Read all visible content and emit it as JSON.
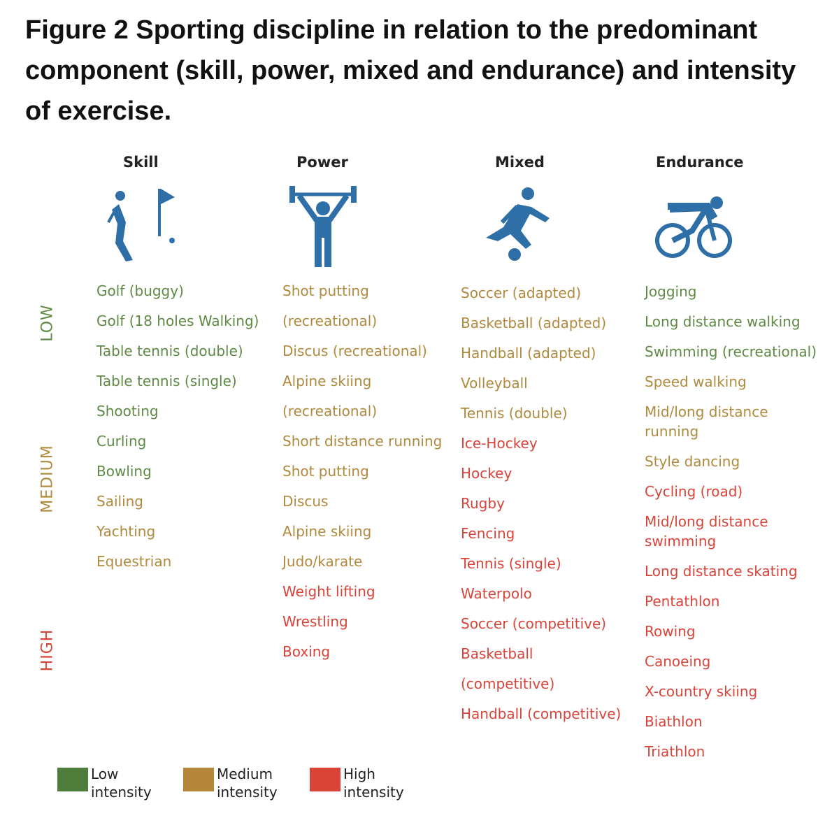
{
  "title": "Figure 2 Sporting discipline in relation to the predominant component (skill, power, mixed and endurance) and intensity of exercise.",
  "intensity_labels": [
    "LOW",
    "MEDIUM",
    "HIGH"
  ],
  "intensity_colors": [
    "#5e8a45",
    "#b08a3e",
    "#d9443a"
  ],
  "columns": [
    {
      "header": "Skill",
      "items": [
        {
          "lines": [
            "Golf (buggy)"
          ],
          "intensity": 0
        },
        {
          "lines": [
            "Golf (18 holes Walking)"
          ],
          "intensity": 0
        },
        {
          "lines": [
            "Table tennis (double)"
          ],
          "intensity": 0
        },
        {
          "lines": [
            "Table tennis (single)"
          ],
          "intensity": 0
        },
        {
          "lines": [
            "Shooting"
          ],
          "intensity": 0
        },
        {
          "lines": [
            "Curling"
          ],
          "intensity": 0
        },
        {
          "lines": [
            "Bowling"
          ],
          "intensity": 0
        },
        {
          "lines": [
            "Sailing"
          ],
          "intensity": 1
        },
        {
          "lines": [
            "Yachting"
          ],
          "intensity": 1
        },
        {
          "lines": [
            "Equestrian"
          ],
          "intensity": 1
        }
      ]
    },
    {
      "header": "Power",
      "items": [
        {
          "lines": [
            "Shot putting"
          ],
          "intensity": 1
        },
        {
          "lines": [
            "(recreational)"
          ],
          "intensity": 1
        },
        {
          "lines": [
            "Discus (recreational)"
          ],
          "intensity": 1
        },
        {
          "lines": [
            "Alpine skiing"
          ],
          "intensity": 1
        },
        {
          "lines": [
            "(recreational)"
          ],
          "intensity": 1
        },
        {
          "lines": [
            "Short distance running"
          ],
          "intensity": 1
        },
        {
          "lines": [
            "Shot putting"
          ],
          "intensity": 1
        },
        {
          "lines": [
            "Discus"
          ],
          "intensity": 1
        },
        {
          "lines": [
            "Alpine skiing"
          ],
          "intensity": 1
        },
        {
          "lines": [
            "Judo/karate"
          ],
          "intensity": 1
        },
        {
          "lines": [
            "Weight lifting"
          ],
          "intensity": 2
        },
        {
          "lines": [
            "Wrestling"
          ],
          "intensity": 2
        },
        {
          "lines": [
            "Boxing"
          ],
          "intensity": 2
        }
      ]
    },
    {
      "header": "Mixed",
      "items": [
        {
          "lines": [
            "Soccer (adapted)"
          ],
          "intensity": 1
        },
        {
          "lines": [
            "Basketball (adapted)"
          ],
          "intensity": 1
        },
        {
          "lines": [
            "Handball (adapted)"
          ],
          "intensity": 1
        },
        {
          "lines": [
            "Volleyball"
          ],
          "intensity": 1
        },
        {
          "lines": [
            "Tennis (double)"
          ],
          "intensity": 1
        },
        {
          "lines": [
            "Ice-Hockey"
          ],
          "intensity": 2
        },
        {
          "lines": [
            "Hockey"
          ],
          "intensity": 2
        },
        {
          "lines": [
            "Rugby"
          ],
          "intensity": 2
        },
        {
          "lines": [
            "Fencing"
          ],
          "intensity": 2
        },
        {
          "lines": [
            "Tennis (single)"
          ],
          "intensity": 2
        },
        {
          "lines": [
            "Waterpolo"
          ],
          "intensity": 2
        },
        {
          "lines": [
            "Soccer (competitive)"
          ],
          "intensity": 2
        },
        {
          "lines": [
            "Basketball"
          ],
          "intensity": 2
        },
        {
          "lines": [
            "(competitive)"
          ],
          "intensity": 2
        },
        {
          "lines": [
            "Handball (competitive)"
          ],
          "intensity": 2
        }
      ]
    },
    {
      "header": "Endurance",
      "items": [
        {
          "lines": [
            "Jogging"
          ],
          "intensity": 0
        },
        {
          "lines": [
            "Long distance walking"
          ],
          "intensity": 0
        },
        {
          "lines": [
            "Swimming (recreational)"
          ],
          "intensity": 0
        },
        {
          "lines": [
            "Speed walking"
          ],
          "intensity": 1
        },
        {
          "lines": [
            "Mid/long distance",
            "running"
          ],
          "intensity": 1
        },
        {
          "lines": [
            "Style dancing"
          ],
          "intensity": 1
        },
        {
          "lines": [
            "Cycling (road)"
          ],
          "intensity": 2
        },
        {
          "lines": [
            "Mid/long distance",
            "swimming"
          ],
          "intensity": 2
        },
        {
          "lines": [
            "Long distance skating"
          ],
          "intensity": 2
        },
        {
          "lines": [
            "Pentathlon"
          ],
          "intensity": 2
        },
        {
          "lines": [
            "Rowing"
          ],
          "intensity": 2
        },
        {
          "lines": [
            "Canoeing"
          ],
          "intensity": 2
        },
        {
          "lines": [
            "X-country skiing"
          ],
          "intensity": 2
        },
        {
          "lines": [
            "Biathlon"
          ],
          "intensity": 2
        },
        {
          "lines": [
            "Triathlon"
          ],
          "intensity": 2
        }
      ]
    }
  ],
  "legend": [
    {
      "label": "Low intensity",
      "color": "#4e7d3c"
    },
    {
      "label": "Medium intensity",
      "color": "#b5873a"
    },
    {
      "label": "High intensity",
      "color": "#d94338"
    }
  ]
}
